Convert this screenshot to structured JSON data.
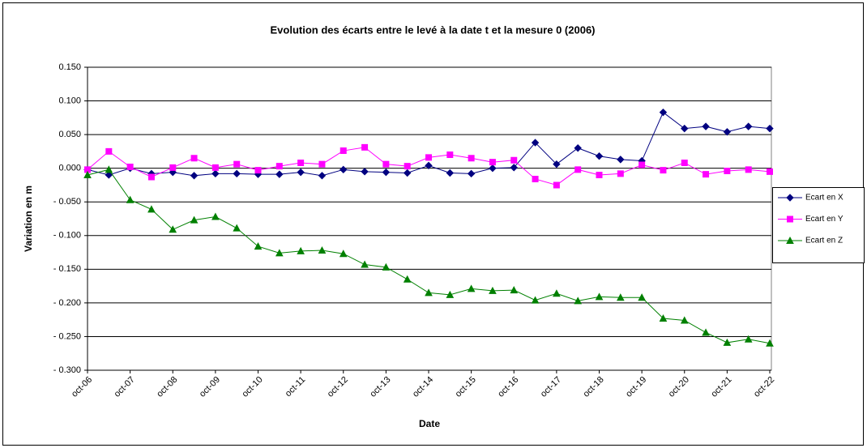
{
  "chart_data": {
    "type": "line",
    "title": "Evolution des écarts entre le levé à la date t et la mesure 0 (2006)",
    "x_label": "Date",
    "y_label": "Variation en m",
    "categories": [
      "oct-06",
      null,
      "oct-07",
      null,
      "oct-08",
      null,
      "oct-09",
      null,
      "oct-10",
      null,
      "oct-11",
      null,
      "oct-12",
      null,
      "oct-13",
      null,
      "oct-14",
      null,
      "oct-15",
      null,
      "oct-16",
      null,
      "oct-17",
      null,
      "oct-18",
      null,
      "oct-19",
      null,
      "oct-20",
      null,
      "oct-21",
      null,
      "oct-22"
    ],
    "series": [
      {
        "name": "Ecart en X",
        "color": "#000080",
        "marker": "diamond",
        "values": [
          -0.002,
          -0.01,
          0.0,
          -0.008,
          -0.006,
          -0.011,
          -0.008,
          -0.008,
          -0.009,
          -0.009,
          -0.006,
          -0.011,
          -0.002,
          -0.005,
          -0.006,
          -0.007,
          0.004,
          -0.007,
          -0.008,
          0.0,
          0.001,
          0.038,
          0.006,
          0.03,
          0.018,
          0.013,
          0.011,
          0.083,
          0.059,
          0.062,
          0.054,
          0.062,
          0.059
        ]
      },
      {
        "name": "Ecart en Y",
        "color": "#ff00ff",
        "marker": "square",
        "values": [
          -0.002,
          0.025,
          0.002,
          -0.013,
          0.001,
          0.015,
          0.001,
          0.006,
          -0.003,
          0.003,
          0.008,
          0.006,
          0.026,
          0.031,
          0.006,
          0.003,
          0.016,
          0.02,
          0.015,
          0.009,
          0.012,
          -0.016,
          -0.025,
          -0.002,
          -0.01,
          -0.008,
          0.005,
          -0.003,
          0.008,
          -0.009,
          -0.004,
          -0.002,
          -0.005
        ]
      },
      {
        "name": "Ecart en Z",
        "color": "#008000",
        "marker": "triangle",
        "values": [
          -0.01,
          -0.002,
          -0.047,
          -0.061,
          -0.091,
          -0.077,
          -0.072,
          -0.089,
          -0.116,
          -0.126,
          -0.123,
          -0.122,
          -0.127,
          -0.143,
          -0.147,
          -0.165,
          -0.185,
          -0.188,
          -0.179,
          -0.182,
          -0.181,
          -0.196,
          -0.186,
          -0.197,
          -0.191,
          -0.192,
          -0.192,
          -0.223,
          -0.226,
          -0.244,
          -0.259,
          -0.254,
          -0.26
        ]
      }
    ],
    "ylim": [
      -0.3,
      0.15
    ],
    "yticks": [
      {
        "value": -0.3,
        "label": "- 0.300"
      },
      {
        "value": -0.25,
        "label": "- 0.250"
      },
      {
        "value": -0.2,
        "label": "- 0.200"
      },
      {
        "value": -0.15,
        "label": "- 0.150"
      },
      {
        "value": -0.1,
        "label": "- 0.100"
      },
      {
        "value": -0.05,
        "label": "- 0.050"
      },
      {
        "value": 0,
        "label": "0.000"
      },
      {
        "value": 0.05,
        "label": "0.050"
      },
      {
        "value": 0.1,
        "label": "0.100"
      },
      {
        "value": 0.15,
        "label": "0.150"
      }
    ],
    "grid": true,
    "legend": "right"
  }
}
